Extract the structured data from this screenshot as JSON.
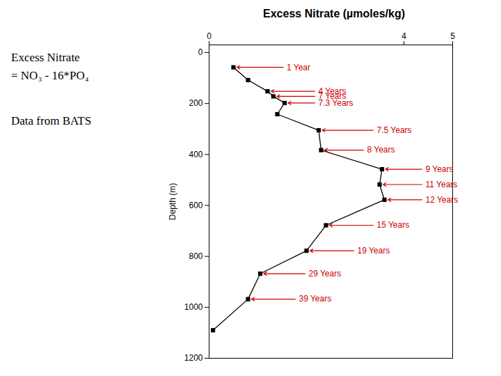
{
  "chart_data": {
    "type": "line",
    "title": "Excess Nitrate (µmoles/kg)",
    "y_label": "Depth (m)",
    "x": [
      0.5,
      0.8,
      1.2,
      1.32,
      1.55,
      1.4,
      2.25,
      2.3,
      3.55,
      3.5,
      3.6,
      2.4,
      2.0,
      1.05,
      0.8,
      0.08
    ],
    "values": [
      58,
      108,
      152,
      172,
      198,
      242,
      305,
      383,
      458,
      518,
      578,
      678,
      778,
      868,
      968,
      1090
    ],
    "color": "#000000",
    "marker": "square",
    "line_style": "solid",
    "xlim": [
      0,
      5
    ],
    "ylim": [
      1200,
      -30
    ],
    "xticks": [
      0,
      4,
      5
    ],
    "yticks": [
      0,
      200,
      400,
      600,
      800,
      1000,
      1200
    ],
    "grid": false,
    "annotation_color": "#cc0000",
    "annotations": [
      {
        "text": "1 Year",
        "x": 0.5,
        "y": 58,
        "text_x": 1.55
      },
      {
        "text": "4 Years",
        "x": 1.2,
        "y": 152,
        "text_x": 2.2
      },
      {
        "text": "7 Years",
        "x": 1.32,
        "y": 172,
        "text_x": 2.2
      },
      {
        "text": "7.3 Years",
        "x": 1.55,
        "y": 198,
        "text_x": 2.2
      },
      {
        "text": "7.5 Years",
        "x": 2.25,
        "y": 305,
        "text_x": 3.4
      },
      {
        "text": "8 Years",
        "x": 2.3,
        "y": 383,
        "text_x": 3.2
      },
      {
        "text": "9 Years",
        "x": 3.55,
        "y": 458,
        "text_x": 4.4
      },
      {
        "text": "11 Years",
        "x": 3.5,
        "y": 518,
        "text_x": 4.4
      },
      {
        "text": "12 Years",
        "x": 3.6,
        "y": 578,
        "text_x": 4.4
      },
      {
        "text": "15 Years",
        "x": 2.4,
        "y": 678,
        "text_x": 3.4
      },
      {
        "text": "19 Years",
        "x": 2.0,
        "y": 778,
        "text_x": 3.0
      },
      {
        "text": "29 Years",
        "x": 1.05,
        "y": 868,
        "text_x": 2.0
      },
      {
        "text": "39 Years",
        "x": 0.8,
        "y": 968,
        "text_x": 1.8
      }
    ],
    "side_notes": [
      [
        "Excess Nitrate",
        "= NO₃ - 16*PO₄"
      ],
      [
        "Data from BATS"
      ]
    ]
  }
}
